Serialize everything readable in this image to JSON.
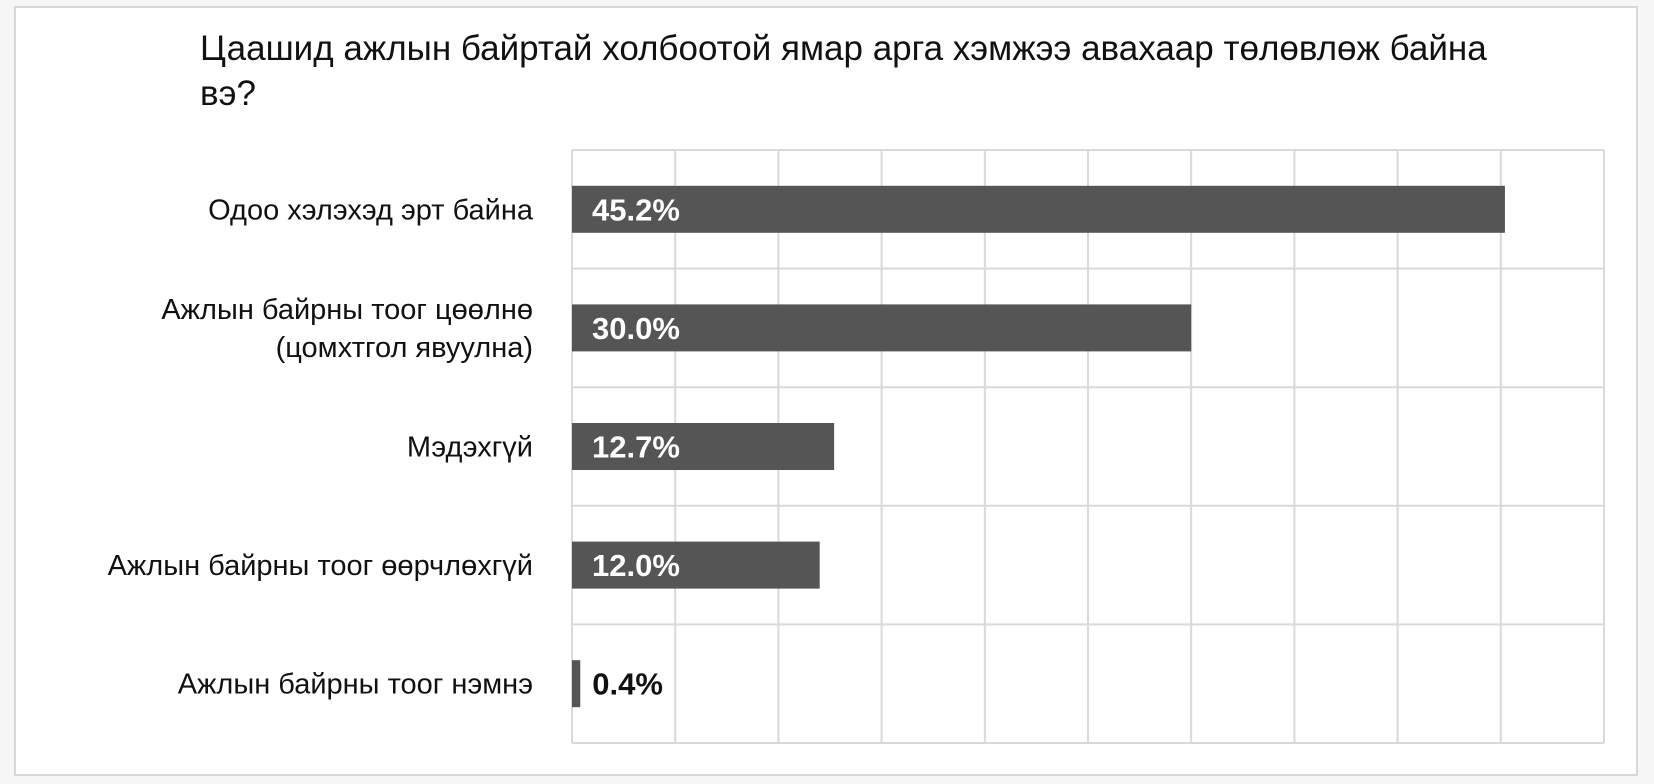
{
  "chart_data": {
    "type": "bar",
    "orientation": "horizontal",
    "title": "Цаашид ажлын байртай холбоотой ямар арга хэмжээ авахаар төлөвлөж байна вэ?",
    "categories": [
      [
        "Одоо хэлэхэд эрт байна"
      ],
      [
        "Ажлын байрны тоог цөөлнө",
        "(цомхтгол явуулна)"
      ],
      [
        "Мэдэхгүй"
      ],
      [
        "Ажлын байрны тоог өөрчлөхгүй"
      ],
      [
        "Ажлын байрны тоог нэмнэ"
      ]
    ],
    "values": [
      45.2,
      30.0,
      12.7,
      12.0,
      0.4
    ],
    "value_labels": [
      "45.2%",
      "30.0%",
      "12.7%",
      "12.0%",
      "0.4%"
    ],
    "unit": "%",
    "xlim": [
      0,
      50
    ],
    "grid": true,
    "bar_color": "#555555",
    "label_inside_color": "#ffffff",
    "label_outside_color": "#111111",
    "grid_color": "#d9d9d9"
  }
}
